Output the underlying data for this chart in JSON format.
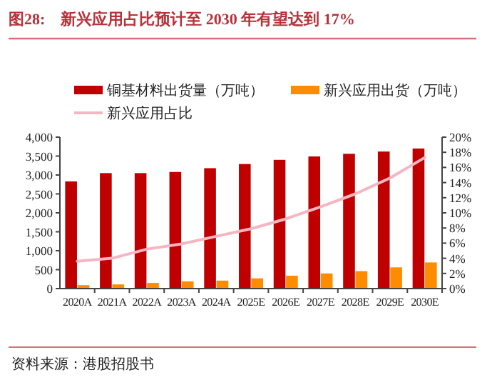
{
  "chart_data": {
    "type": "bar",
    "title": "图28:　新兴应用占比预计至 2030 年有望达到 17%",
    "categories": [
      "2020A",
      "2021A",
      "2022A",
      "2023A",
      "2024A",
      "2025E",
      "2026E",
      "2027E",
      "2028E",
      "2029E",
      "2030E"
    ],
    "series": [
      {
        "name": "铜基材料出货量（万吨）",
        "color": "#c00000",
        "values": [
          2830,
          3050,
          3050,
          3080,
          3180,
          3290,
          3400,
          3490,
          3560,
          3620,
          3700
        ]
      },
      {
        "name": "新兴应用出货（万吨）",
        "color": "#ff8c00",
        "values": [
          90,
          110,
          150,
          190,
          210,
          270,
          340,
          400,
          460,
          560,
          690
        ]
      },
      {
        "name": "新兴应用占比",
        "type": "line",
        "axis": "y2",
        "color": "#f4b6c2",
        "values": [
          3.6,
          4.0,
          5.2,
          5.9,
          6.9,
          7.9,
          9.2,
          10.8,
          12.5,
          14.6,
          17.3
        ]
      }
    ],
    "ylim": [
      0,
      4000
    ],
    "yticks": [
      0,
      500,
      {
        "value": 1000,
        "label": "1,000"
      },
      {
        "value": 1500,
        "label": "1,500"
      },
      {
        "value": 2000,
        "label": "2,000"
      },
      {
        "value": 2500,
        "label": "2,500"
      },
      {
        "value": 3000,
        "label": "3,000"
      },
      {
        "value": 3500,
        "label": "3,500"
      },
      {
        "value": 4000,
        "label": "4,000"
      }
    ],
    "y2lim": [
      0,
      20
    ],
    "y2ticks": [
      {
        "value": 0,
        "label": "0%"
      },
      {
        "value": 2,
        "label": "2%"
      },
      {
        "value": 4,
        "label": "4%"
      },
      {
        "value": 6,
        "label": "6%"
      },
      {
        "value": 8,
        "label": "8%"
      },
      {
        "value": 10,
        "label": "10%"
      },
      {
        "value": 12,
        "label": "12%"
      },
      {
        "value": 14,
        "label": "14%"
      },
      {
        "value": 16,
        "label": "16%"
      },
      {
        "value": 18,
        "label": "18%"
      },
      {
        "value": 20,
        "label": "20%"
      }
    ],
    "legend": "top",
    "grid": false,
    "marker": "none",
    "line_style": "solid",
    "annotations": [
      "资料来源：港股招股书"
    ]
  }
}
